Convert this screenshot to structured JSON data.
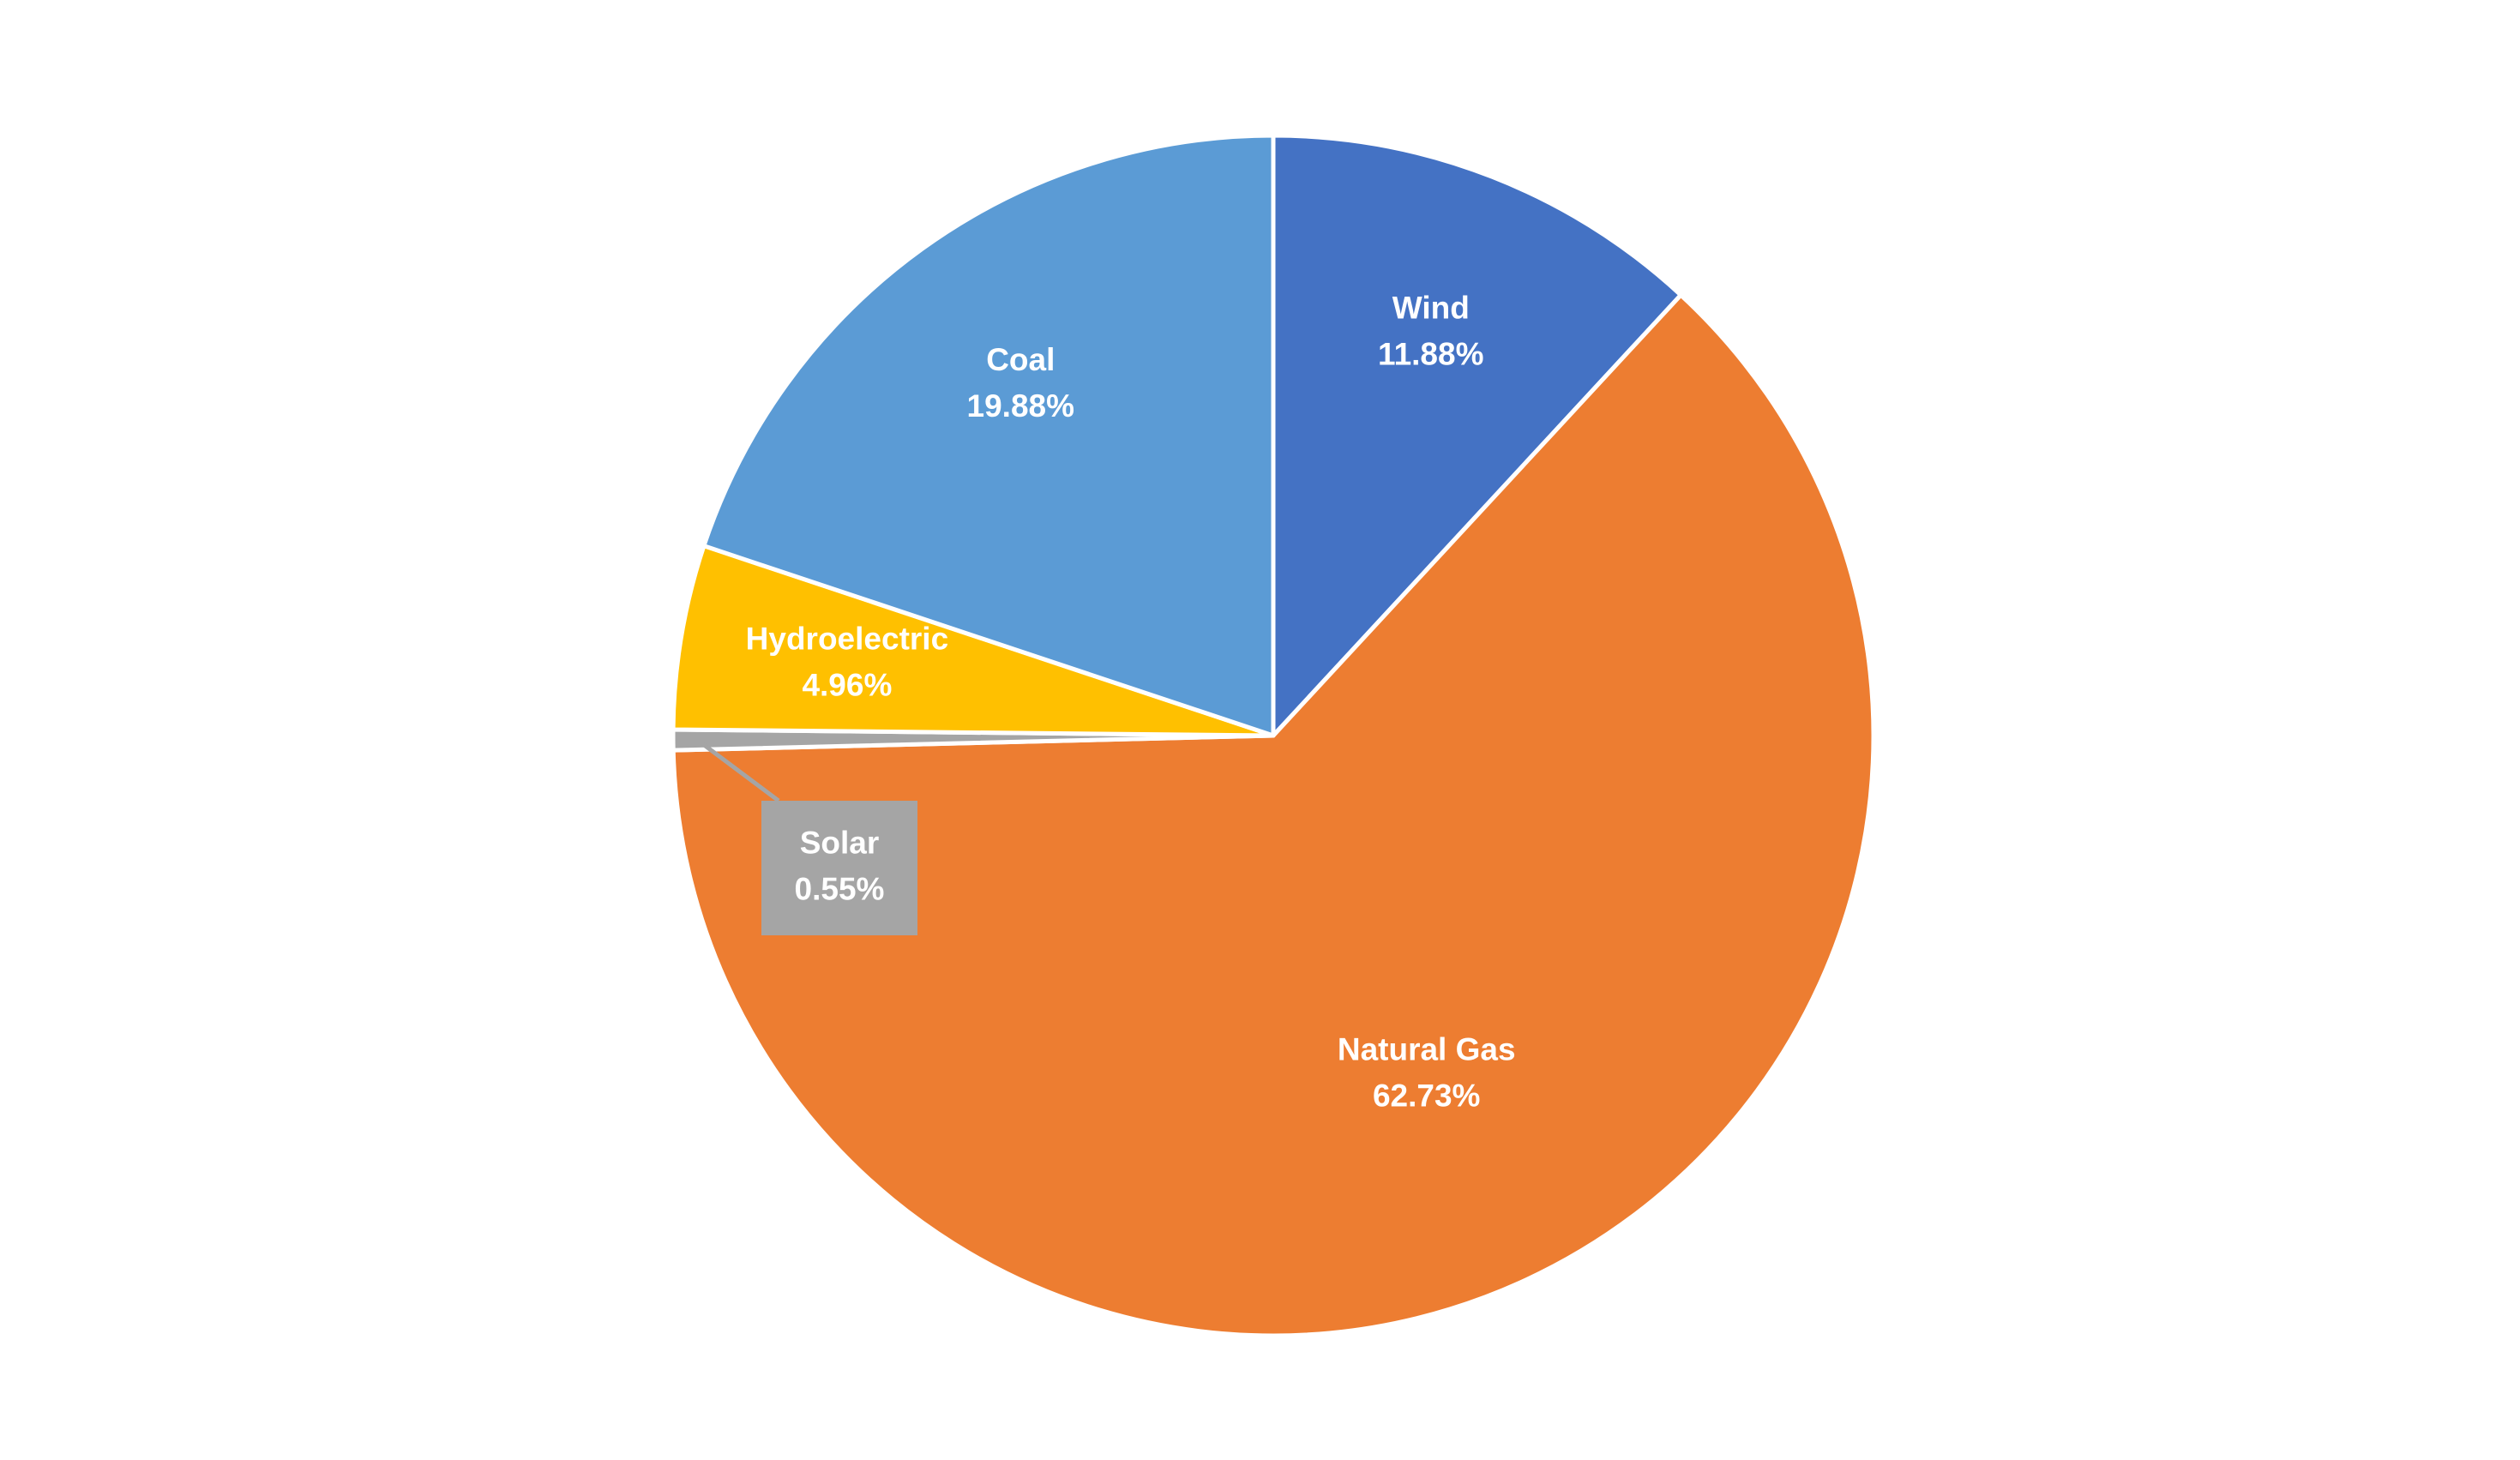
{
  "chart_data": {
    "type": "pie",
    "categories": [
      "Wind",
      "Natural Gas",
      "Solar",
      "Hydroelectric",
      "Coal"
    ],
    "values": [
      11.88,
      62.73,
      0.55,
      4.96,
      19.88
    ],
    "value_labels": [
      "11.88%",
      "62.73%",
      "0.55%",
      "4.96%",
      "19.88%"
    ],
    "colors": [
      "#4472c4",
      "#ed7d31",
      "#a5a5a5",
      "#ffc000",
      "#5b9bd5"
    ]
  }
}
